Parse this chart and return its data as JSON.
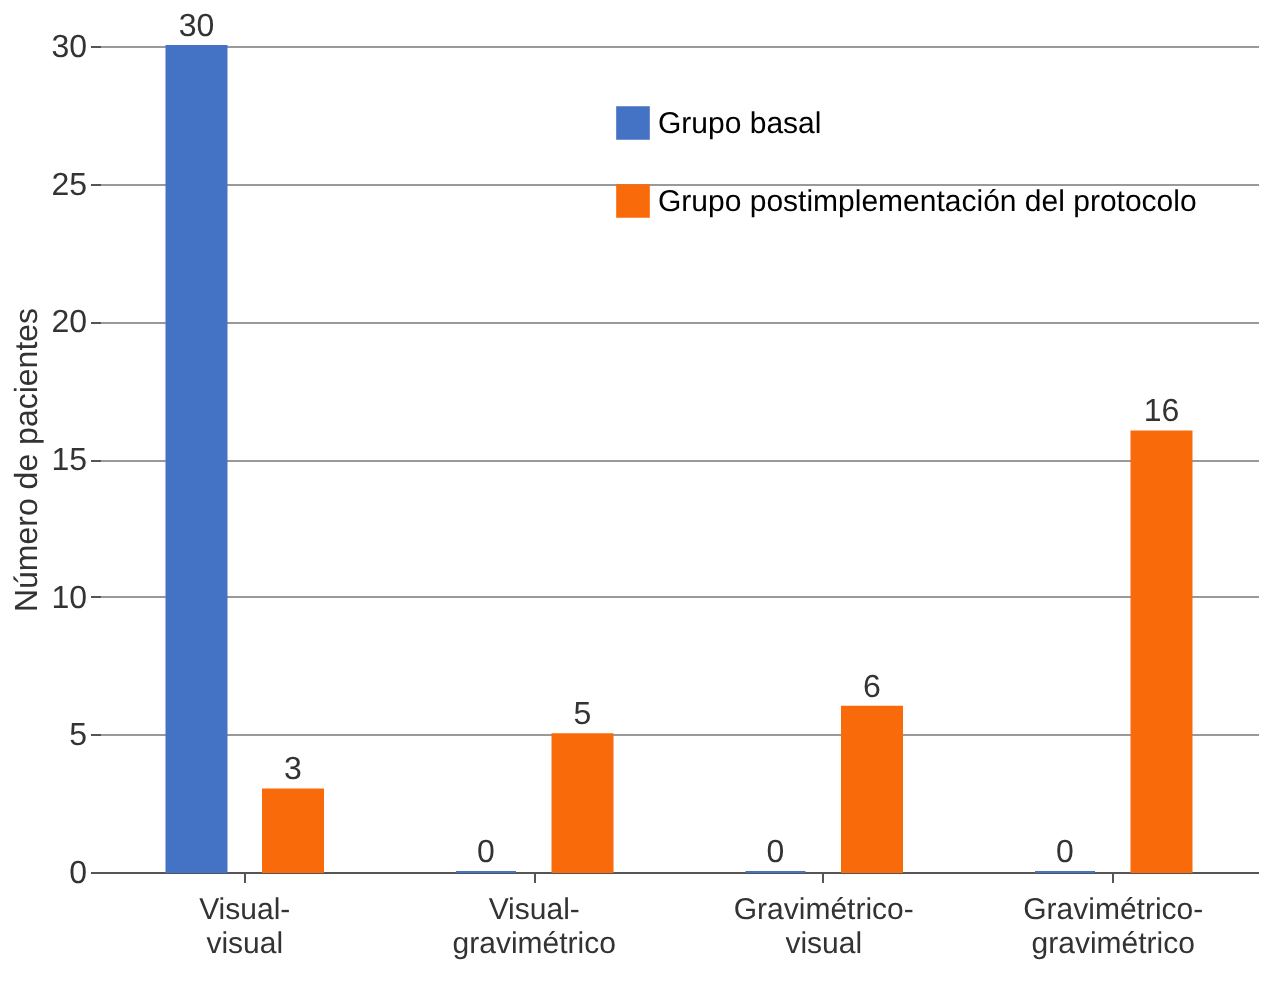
{
  "chart_data": {
    "type": "bar",
    "ylabel": "Número de pacientes",
    "categories": [
      "Visual-\nvisual",
      "Visual-\ngravimétrico",
      "Gravimétrico-\nvisual",
      "Gravimétrico-\ngravimétrico"
    ],
    "series": [
      {
        "name": "Grupo basal",
        "color": "#4472c4",
        "values": [
          30,
          0,
          0,
          0
        ]
      },
      {
        "name": "Grupo postimplementación del protocolo",
        "color": "#f96a0a",
        "values": [
          3,
          5,
          6,
          16
        ]
      }
    ],
    "ylim": [
      0,
      30
    ],
    "yticks": [
      0,
      5,
      10,
      15,
      20,
      25,
      30
    ],
    "grid": "y",
    "legend": "top right",
    "data_labels": true
  }
}
